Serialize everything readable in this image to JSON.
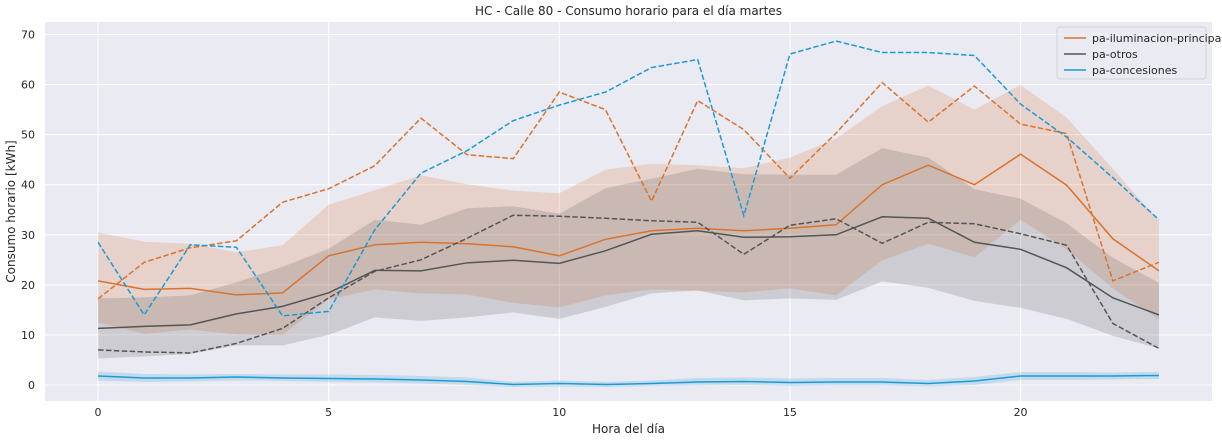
{
  "chart_data": {
    "type": "line",
    "title": "HC - Calle 80 - Consumo horario para el día martes",
    "xlabel": "Hora del día",
    "ylabel": "Consumo horario [kWh]",
    "xlim": [
      -1.15,
      24.15
    ],
    "ylim": [
      -3.2,
      72.5
    ],
    "xticks": [
      0,
      5,
      10,
      15,
      20
    ],
    "yticks": [
      0,
      10,
      20,
      30,
      40,
      50,
      60,
      70
    ],
    "grid": true,
    "legend_position": "top-right",
    "x": [
      0,
      1,
      2,
      3,
      4,
      5,
      6,
      7,
      8,
      9,
      10,
      11,
      12,
      13,
      14,
      15,
      16,
      17,
      18,
      19,
      20,
      21,
      22,
      23
    ],
    "series": [
      {
        "name": "pa-iluminacion-principal",
        "color": "#d9732e",
        "mean": [
          20.8,
          19.1,
          19.3,
          18.0,
          18.4,
          25.8,
          28.0,
          28.5,
          28.2,
          27.6,
          25.8,
          29.1,
          30.8,
          31.3,
          30.8,
          31.3,
          32.0,
          40.0,
          43.9,
          40.0,
          46.1,
          39.9,
          29.2,
          22.8
        ],
        "band_upper": [
          30.5,
          28.6,
          28.2,
          26.5,
          27.9,
          36.0,
          38.9,
          41.9,
          40.1,
          38.8,
          38.3,
          43.0,
          44.2,
          43.9,
          43.3,
          45.4,
          49.2,
          55.7,
          59.8,
          55.0,
          59.9,
          53.4,
          43.2,
          32.7
        ],
        "band_lower": [
          12.5,
          10.2,
          11.1,
          10.1,
          10.0,
          17.1,
          19.1,
          18.3,
          18.1,
          16.4,
          15.5,
          17.9,
          19.1,
          18.8,
          18.5,
          19.3,
          17.9,
          24.9,
          28.2,
          25.5,
          33.0,
          27.1,
          19.3,
          13.1
        ],
        "dashed": [
          17.2,
          24.5,
          27.4,
          28.8,
          36.5,
          39.2,
          43.8,
          53.3,
          46.0,
          45.2,
          58.5,
          55.0,
          36.7,
          56.8,
          51.0,
          41.3,
          50.3,
          60.4,
          52.5,
          59.7,
          52.1,
          50.2,
          20.8,
          24.5
        ]
      },
      {
        "name": "pa-otros",
        "color": "#555555",
        "mean": [
          11.3,
          11.7,
          12.0,
          14.2,
          15.7,
          18.4,
          22.9,
          22.8,
          24.4,
          24.9,
          24.3,
          26.8,
          30.1,
          30.8,
          29.5,
          29.6,
          30.0,
          33.6,
          33.3,
          28.5,
          27.1,
          23.4,
          17.4,
          14.0
        ],
        "band_upper": [
          17.3,
          17.5,
          17.9,
          20.5,
          23.6,
          27.2,
          33.0,
          32.0,
          35.3,
          35.7,
          34.2,
          39.3,
          41.2,
          43.2,
          42.1,
          42.0,
          42.0,
          47.3,
          45.4,
          39.1,
          37.2,
          32.3,
          25.4,
          20.4
        ],
        "band_lower": [
          5.3,
          5.7,
          6.2,
          7.9,
          7.9,
          10.0,
          13.5,
          12.8,
          13.5,
          14.5,
          13.2,
          15.6,
          18.3,
          18.9,
          16.9,
          17.3,
          17.0,
          20.7,
          19.4,
          16.8,
          15.4,
          13.2,
          9.8,
          7.3
        ],
        "dashed": [
          7.0,
          6.6,
          6.4,
          8.3,
          11.3,
          17.4,
          22.7,
          25.0,
          29.3,
          33.9,
          33.7,
          33.3,
          32.8,
          32.5,
          26.1,
          31.9,
          33.2,
          28.3,
          32.5,
          32.2,
          30.2,
          27.9,
          12.3,
          7.3
        ]
      },
      {
        "name": "pa-concesiones",
        "color": "#1c9ad6",
        "mean": [
          1.8,
          1.4,
          1.4,
          1.6,
          1.4,
          1.3,
          1.2,
          1.0,
          0.7,
          0.1,
          0.3,
          0.1,
          0.3,
          0.6,
          0.7,
          0.5,
          0.6,
          0.6,
          0.3,
          0.8,
          1.8,
          1.8,
          1.8,
          1.9
        ],
        "band_upper": [
          2.7,
          2.2,
          2.1,
          2.2,
          2.1,
          2.1,
          2.0,
          1.8,
          1.5,
          0.6,
          0.9,
          0.6,
          0.9,
          1.4,
          1.5,
          1.3,
          1.4,
          1.4,
          1.0,
          1.6,
          2.6,
          2.6,
          2.5,
          2.6
        ],
        "band_lower": [
          0.9,
          0.6,
          0.7,
          0.9,
          0.8,
          0.6,
          0.5,
          0.3,
          0.0,
          -0.4,
          -0.3,
          -0.4,
          -0.2,
          -0.1,
          0.0,
          -0.2,
          -0.1,
          -0.1,
          -0.3,
          0.0,
          1.0,
          1.0,
          1.1,
          1.2
        ],
        "dashed": [
          28.5,
          14.0,
          28.0,
          27.5,
          13.8,
          14.7,
          31.0,
          42.3,
          46.8,
          52.8,
          55.9,
          58.5,
          63.4,
          65.0,
          33.8,
          66.1,
          68.7,
          66.4,
          66.4,
          65.8,
          56.1,
          49.5,
          41.4,
          33.0
        ]
      }
    ]
  }
}
